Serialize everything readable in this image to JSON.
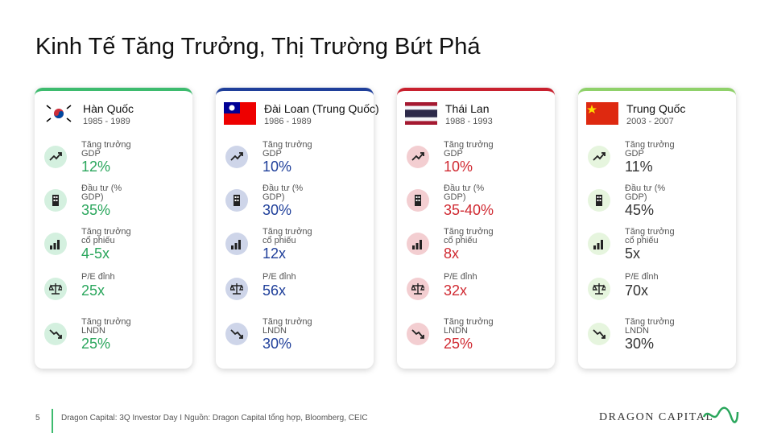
{
  "title": "Kinh Tế Tăng Trưởng, Thị Trường Bứt Phá",
  "cards": [
    {
      "country": "Hàn Quốc",
      "period": "1985 - 1989",
      "color": "#3dbb6e",
      "value_color": "#2aa65c",
      "metrics": [
        {
          "label": "Tăng trưởng GDP",
          "value": "12%"
        },
        {
          "label": "Đầu tư (% GDP)",
          "value": "35%"
        },
        {
          "label": "Tăng trưởng cổ phiếu",
          "value": "4-5x"
        },
        {
          "label": "P/E đỉnh",
          "value": "25x"
        },
        {
          "label": "Tăng trưởng LNDN",
          "value": "25%"
        }
      ]
    },
    {
      "country": "Đài Loan (Trung Quốc)",
      "period": "1986 - 1989",
      "color": "#1f3f9a",
      "value_color": "#1f3f9a",
      "metrics": [
        {
          "label": "Tăng trưởng GDP",
          "value": "10%"
        },
        {
          "label": "Đầu tư (% GDP)",
          "value": "30%"
        },
        {
          "label": "Tăng trưởng cổ phiếu",
          "value": "12x"
        },
        {
          "label": "P/E đỉnh",
          "value": "56x"
        },
        {
          "label": "Tăng trưởng LNDN",
          "value": "30%"
        }
      ]
    },
    {
      "country": "Thái Lan",
      "period": "1988 - 1993",
      "color": "#c8202e",
      "value_color": "#d02a32",
      "metrics": [
        {
          "label": "Tăng trưởng GDP",
          "value": "10%"
        },
        {
          "label": "Đầu tư (% GDP)",
          "value": "35-40%"
        },
        {
          "label": "Tăng trưởng cổ phiếu",
          "value": "8x"
        },
        {
          "label": "P/E đỉnh",
          "value": "32x"
        },
        {
          "label": "Tăng trưởng LNDN",
          "value": "25%"
        }
      ]
    },
    {
      "country": "Trung Quốc",
      "period": "2003 - 2007",
      "color": "#8fd16a",
      "value_color": "#333333",
      "metrics": [
        {
          "label": "Tăng trưởng GDP",
          "value": "11%"
        },
        {
          "label": "Đầu tư (% GDP)",
          "value": "45%"
        },
        {
          "label": "Tăng trưởng cổ phiếu",
          "value": "5x"
        },
        {
          "label": "P/E đỉnh",
          "value": "70x"
        },
        {
          "label": "Tăng trưởng LNDN",
          "value": "30%"
        }
      ]
    }
  ],
  "footer": {
    "page": "5",
    "source": "Dragon Capital: 3Q Investor Day I Nguồn: Dragon Capital tổng hợp, Bloomberg, CEIC",
    "logo": "DRAGON CAPITAL"
  }
}
